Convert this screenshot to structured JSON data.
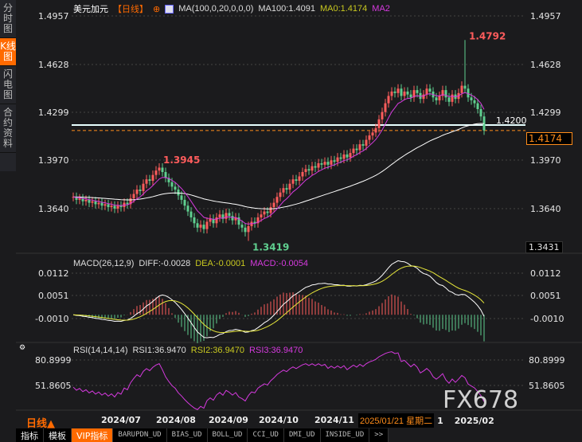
{
  "sidebar": [
    {
      "label": "分时图",
      "active": false
    },
    {
      "label": "K线图",
      "active": true
    },
    {
      "label": "闪电图",
      "active": false
    },
    {
      "label": "合约资料",
      "active": false
    }
  ],
  "header": {
    "symbol": "美元加元",
    "period": "【日线】",
    "ma_params": "MA(100,0,20,0,0,0)",
    "ma100": "MA100:1.4091",
    "ma0": "MA0:1.4174",
    "ma2": "MA2"
  },
  "colors": {
    "up": "#ff5c5c",
    "down": "#5fcf8f",
    "ma100": "#ffffff",
    "ma2": "#d63adf",
    "accent": "#ff6a00",
    "dea": "#e8e83a"
  },
  "price_axis": [
    "1.4957",
    "1.4628",
    "1.4299",
    "1.3970",
    "1.3640"
  ],
  "price_axis_values": [
    1.4957,
    1.4628,
    1.4299,
    1.397,
    1.364
  ],
  "bottom_price": "1.3431",
  "level_line": {
    "label": "1.4200",
    "value": 1.42
  },
  "current_price": {
    "label": "1.4174",
    "value": 1.4174
  },
  "annotations": [
    {
      "label": "1.4792",
      "value": 1.4792,
      "index": 123
    },
    {
      "label": "1.3945",
      "value": 1.3945,
      "index": 27
    },
    {
      "label": "1.3419",
      "value": 1.3419,
      "index": 55
    }
  ],
  "chart_data": {
    "type": "candlestick",
    "closes": [
      1.372,
      1.37,
      1.371,
      1.369,
      1.37,
      1.368,
      1.369,
      1.367,
      1.368,
      1.366,
      1.367,
      1.365,
      1.366,
      1.364,
      1.366,
      1.365,
      1.368,
      1.367,
      1.371,
      1.374,
      1.377,
      1.376,
      1.381,
      1.384,
      1.383,
      1.387,
      1.39,
      1.392,
      1.389,
      1.385,
      1.382,
      1.379,
      1.377,
      1.373,
      1.37,
      1.366,
      1.362,
      1.358,
      1.354,
      1.351,
      1.353,
      1.35,
      1.355,
      1.357,
      1.354,
      1.358,
      1.36,
      1.357,
      1.361,
      1.359,
      1.356,
      1.358,
      1.353,
      1.351,
      1.348,
      1.352,
      1.355,
      1.354,
      1.358,
      1.36,
      1.362,
      1.361,
      1.365,
      1.368,
      1.372,
      1.375,
      1.378,
      1.377,
      1.381,
      1.384,
      1.383,
      1.386,
      1.389,
      1.391,
      1.39,
      1.393,
      1.392,
      1.395,
      1.394,
      1.396,
      1.394,
      1.397,
      1.396,
      1.399,
      1.398,
      1.401,
      1.399,
      1.402,
      1.405,
      1.404,
      1.408,
      1.407,
      1.411,
      1.414,
      1.416,
      1.419,
      1.425,
      1.43,
      1.436,
      1.441,
      1.444,
      1.443,
      1.446,
      1.441,
      1.444,
      1.442,
      1.44,
      1.445,
      1.443,
      1.439,
      1.442,
      1.446,
      1.444,
      1.44,
      1.438,
      1.441,
      1.445,
      1.44,
      1.437,
      1.442,
      1.439,
      1.443,
      1.448,
      1.446,
      1.44,
      1.438,
      1.436,
      1.432,
      1.427,
      1.4174
    ],
    "x_ticks": [
      "2024/07",
      "2024/08",
      "2024/09",
      "2024/10",
      "2024/11",
      "2025/02"
    ]
  },
  "macd": {
    "title": "MACD(26,12,9)",
    "diff": "DIFF:-0.0028",
    "dea": "DEA:-0.0001",
    "macd": "MACD:-0.0054",
    "axis": [
      "0.0112",
      "0.0051",
      "-0.0010"
    ]
  },
  "rsi": {
    "title": "RSI(14,14,14)",
    "rsi1": "RSI1:36.9470",
    "rsi2": "RSI2:36.9470",
    "rsi3": "RSI3:36.9470",
    "axis": [
      "80.8999",
      "51.8605"
    ]
  },
  "footer": {
    "period": "日线▲",
    "tooltip": "2025/01/21 星期二",
    "tooltip_suffix": "1",
    "watermark": "FX678"
  },
  "tabs": [
    "指标",
    "模板",
    "VIP指标",
    "BARUPDN_UD",
    "BIAS_UD",
    "BOLL_UD",
    "CCI_UD",
    "DMI_UD",
    "INSIDE_UD",
    ">>"
  ]
}
